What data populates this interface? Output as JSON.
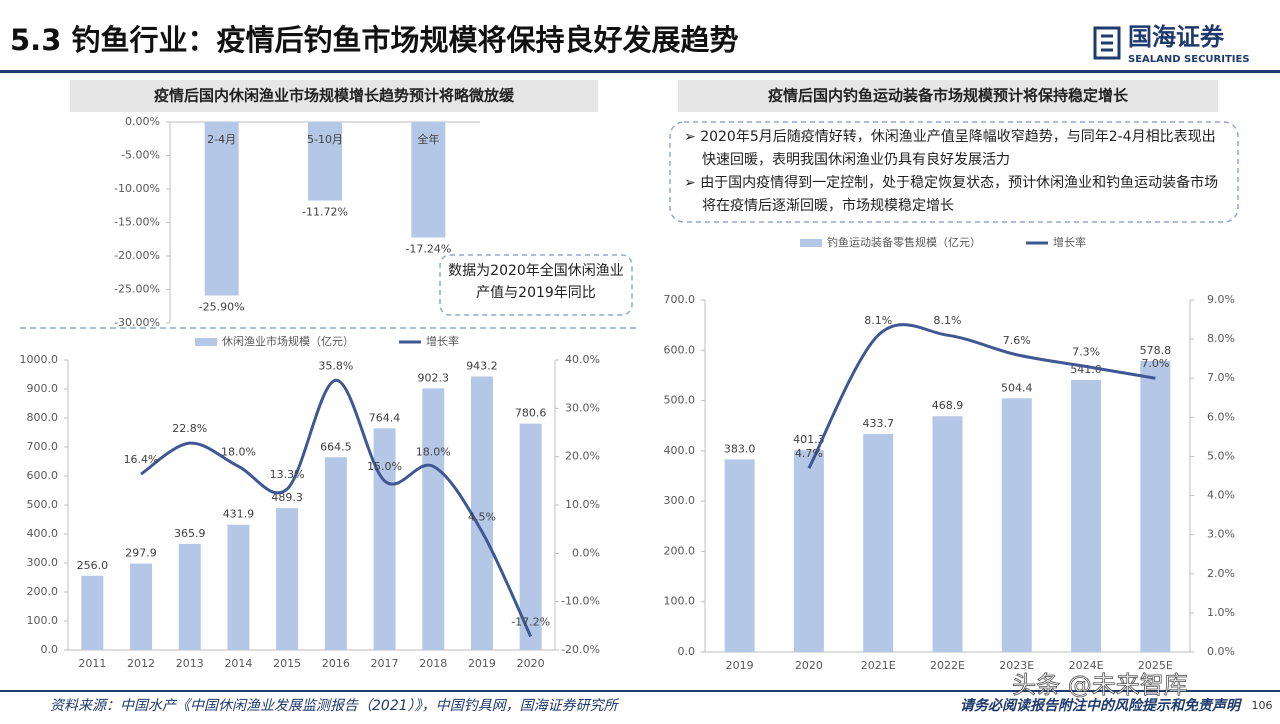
{
  "header": {
    "title": "5.3 钓鱼行业：疫情后钓鱼市场规模将保持良好发展趋势",
    "logo": "国海证券",
    "logo_en": "SEALAND SECURITIES"
  },
  "chart_data": [
    {
      "type": "bar",
      "title": "疫情后国内休闲渔业市场规模增长趋势预计将略微放缓",
      "categories": [
        "2-4月",
        "5-10月",
        "全年"
      ],
      "values": [
        -25.9,
        -11.72,
        -17.24
      ],
      "value_labels": [
        "-25.90%",
        "-11.72%",
        "-17.24%"
      ],
      "color": "#b4c7e7",
      "ylim": [
        -30,
        0
      ],
      "yticks": [
        {
          "value": 0,
          "label": "0.00%"
        },
        {
          "value": -5,
          "label": "-5.00%"
        },
        {
          "value": -10,
          "label": "-10.00%"
        },
        {
          "value": -15,
          "label": "-15.00%"
        },
        {
          "value": -20,
          "label": "-20.00%"
        },
        {
          "value": -25,
          "label": "-25.00%"
        },
        {
          "value": -30,
          "label": "-30.00%"
        }
      ],
      "annotation": "数据为2020年全国休闲渔业产值与2019年同比"
    },
    {
      "type": "combo",
      "categories": [
        "2011",
        "2012",
        "2013",
        "2014",
        "2015",
        "2016",
        "2017",
        "2018",
        "2019",
        "2020"
      ],
      "series": [
        {
          "name": "休闲渔业市场规模（亿元）",
          "type": "bar",
          "color": "#b4c7e7",
          "values": [
            256.0,
            297.9,
            365.9,
            431.9,
            489.3,
            664.5,
            764.4,
            902.3,
            943.2,
            780.6
          ],
          "value_labels": [
            "256.0",
            "297.9",
            "365.9",
            "431.9",
            "489.3",
            "664.5",
            "764.4",
            "902.3",
            "943.2",
            "780.6"
          ]
        },
        {
          "name": "增长率",
          "type": "line",
          "axis": "y2",
          "color": "#3f5893",
          "values": [
            null,
            16.4,
            22.8,
            18.0,
            13.3,
            35.8,
            15.0,
            18.0,
            4.5,
            -17.2
          ],
          "value_labels": [
            null,
            "16.4%",
            "22.8%",
            "18.0%",
            "13.3%",
            "35.8%",
            "15.0%",
            "18.0%",
            "4.5%",
            "-17.2%"
          ]
        }
      ],
      "ylim": [
        0,
        1000
      ],
      "yticks": [
        {
          "value": 0,
          "label": "0.0"
        },
        {
          "value": 100,
          "label": "100.0"
        },
        {
          "value": 200,
          "label": "200.0"
        },
        {
          "value": 300,
          "label": "300.0"
        },
        {
          "value": 400,
          "label": "400.0"
        },
        {
          "value": 500,
          "label": "500.0"
        },
        {
          "value": 600,
          "label": "600.0"
        },
        {
          "value": 700,
          "label": "700.0"
        },
        {
          "value": 800,
          "label": "800.0"
        },
        {
          "value": 900,
          "label": "900.0"
        },
        {
          "value": 1000,
          "label": "1000.0"
        }
      ],
      "y2lim": [
        -20,
        40
      ],
      "y2ticks": [
        {
          "value": -20,
          "label": "-20.0%"
        },
        {
          "value": -10,
          "label": "-10.0%"
        },
        {
          "value": 0,
          "label": "0.0%"
        },
        {
          "value": 10,
          "label": "10.0%"
        },
        {
          "value": 20,
          "label": "20.0%"
        },
        {
          "value": 30,
          "label": "30.0%"
        },
        {
          "value": 40,
          "label": "40.0%"
        }
      ]
    },
    {
      "type": "combo",
      "title": "疫情后国内钓鱼运动装备市场规模预计将保持稳定增长",
      "notes": [
        "2020年5月后随疫情好转，休闲渔业产值呈降幅收窄趋势，与同年2-4月相比表现出快速回暖，表明我国休闲渔业仍具有良好发展活力",
        "由于国内疫情得到一定控制，处于稳定恢复状态，预计休闲渔业和钓鱼运动装备市场将在疫情后逐渐回暖，市场规模稳定增长"
      ],
      "categories": [
        "2019",
        "2020",
        "2021E",
        "2022E",
        "2023E",
        "2024E",
        "2025E"
      ],
      "series": [
        {
          "name": "钓鱼运动装备零售规模（亿元）",
          "type": "bar",
          "color": "#b4c7e7",
          "values": [
            383.0,
            401.3,
            433.7,
            468.9,
            504.4,
            541.0,
            578.8
          ],
          "value_labels": [
            "383.0",
            "401.3",
            "433.7",
            "468.9",
            "504.4",
            "541.0",
            "578.8"
          ]
        },
        {
          "name": "增长率",
          "type": "line",
          "axis": "y2",
          "color": "#3f5893",
          "values": [
            null,
            4.7,
            8.1,
            8.1,
            7.6,
            7.3,
            7.0
          ],
          "value_labels": [
            null,
            "4.7%",
            "8.1%",
            "8.1%",
            "7.6%",
            "7.3%",
            "7.0%"
          ]
        }
      ],
      "ylim": [
        0,
        700
      ],
      "yticks": [
        {
          "value": 0,
          "label": "0.0"
        },
        {
          "value": 100,
          "label": "100.0"
        },
        {
          "value": 200,
          "label": "200.0"
        },
        {
          "value": 300,
          "label": "300.0"
        },
        {
          "value": 400,
          "label": "400.0"
        },
        {
          "value": 500,
          "label": "500.0"
        },
        {
          "value": 600,
          "label": "600.0"
        },
        {
          "value": 700,
          "label": "700.0"
        }
      ],
      "y2lim": [
        0,
        9
      ],
      "y2ticks": [
        {
          "value": 0,
          "label": "0.0%"
        },
        {
          "value": 1,
          "label": "1.0%"
        },
        {
          "value": 2,
          "label": "2.0%"
        },
        {
          "value": 3,
          "label": "3.0%"
        },
        {
          "value": 4,
          "label": "4.0%"
        },
        {
          "value": 5,
          "label": "5.0%"
        },
        {
          "value": 6,
          "label": "6.0%"
        },
        {
          "value": 7,
          "label": "7.0%"
        },
        {
          "value": 8,
          "label": "8.0%"
        },
        {
          "value": 9,
          "label": "9.0%"
        }
      ]
    }
  ],
  "footer": {
    "source": "资料来源：中国水产《中国休闲渔业发展监测报告（2021）》，中国钓具网，国海证券研究所",
    "disclaimer": "请务必阅读报告附注中的风险提示和免责声明",
    "page": "106",
    "watermark": "头条 @未来智库"
  }
}
